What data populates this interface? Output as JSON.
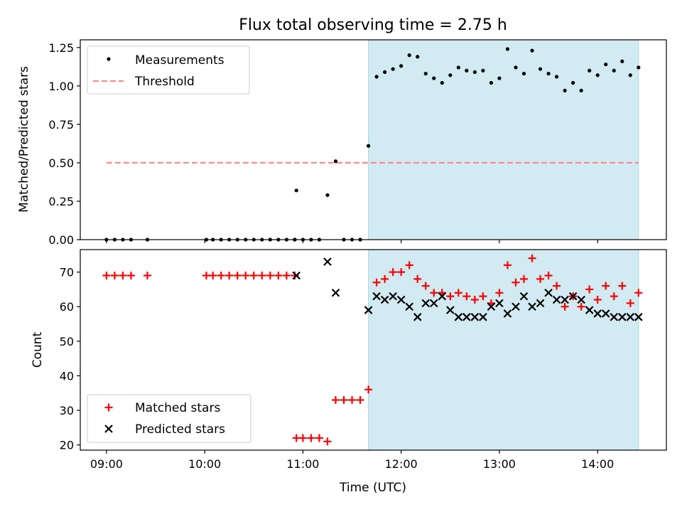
{
  "title": "Flux total observing time = 2.75 h",
  "colors": {
    "shade": "#add8e6",
    "threshold": "#ff8080",
    "measurement": "#000000",
    "matched": "#ff0000",
    "predicted": "#000000"
  },
  "chart_data": [
    {
      "type": "scatter",
      "name": "ratio",
      "ylabel": "Matched/Predicted stars",
      "ylim": [
        0.0,
        1.3
      ],
      "yticks": [
        0.0,
        0.25,
        0.5,
        0.75,
        1.0,
        1.25
      ],
      "ytick_labels": [
        "0.00",
        "0.25",
        "0.50",
        "0.75",
        "1.00",
        "1.25"
      ],
      "xlim": [
        "08:44",
        "14:42"
      ],
      "xticks": [
        "09:00",
        "10:00",
        "11:00",
        "12:00",
        "13:00",
        "14:00"
      ],
      "xtick_labels_shown": false,
      "shaded_region": [
        "11:40",
        "14:25"
      ],
      "grid": false,
      "legend": {
        "position": "top-left",
        "entries": [
          "Measurements",
          "Threshold"
        ]
      },
      "threshold": {
        "label": "Threshold",
        "y": 0.5,
        "x_start": "09:00",
        "x_end": "14:25"
      },
      "series": [
        {
          "name": "Measurements",
          "marker": "dot",
          "points": [
            [
              "09:00",
              0.0
            ],
            [
              "09:05",
              0.0
            ],
            [
              "09:10",
              0.0
            ],
            [
              "09:15",
              0.0
            ],
            [
              "09:25",
              0.0
            ],
            [
              "10:01",
              0.0
            ],
            [
              "10:05",
              0.0
            ],
            [
              "10:10",
              0.0
            ],
            [
              "10:15",
              0.0
            ],
            [
              "10:20",
              0.0
            ],
            [
              "10:25",
              0.0
            ],
            [
              "10:30",
              0.0
            ],
            [
              "10:35",
              0.0
            ],
            [
              "10:40",
              0.0
            ],
            [
              "10:45",
              0.0
            ],
            [
              "10:50",
              0.0
            ],
            [
              "10:55",
              0.0
            ],
            [
              "10:55",
              0.0
            ],
            [
              "10:56",
              0.32
            ],
            [
              "11:00",
              0.0
            ],
            [
              "11:05",
              0.0
            ],
            [
              "11:10",
              0.0
            ],
            [
              "11:15",
              0.29
            ],
            [
              "11:20",
              0.51
            ],
            [
              "11:25",
              0.0
            ],
            [
              "11:30",
              0.0
            ],
            [
              "11:35",
              0.0
            ],
            [
              "11:40",
              0.61
            ],
            [
              "11:45",
              1.06
            ],
            [
              "11:50",
              1.09
            ],
            [
              "11:55",
              1.11
            ],
            [
              "12:00",
              1.13
            ],
            [
              "12:05",
              1.2
            ],
            [
              "12:10",
              1.19
            ],
            [
              "12:15",
              1.08
            ],
            [
              "12:20",
              1.05
            ],
            [
              "12:25",
              1.02
            ],
            [
              "12:30",
              1.07
            ],
            [
              "12:35",
              1.12
            ],
            [
              "12:40",
              1.1
            ],
            [
              "12:45",
              1.09
            ],
            [
              "12:50",
              1.1
            ],
            [
              "12:55",
              1.02
            ],
            [
              "13:00",
              1.05
            ],
            [
              "13:05",
              1.24
            ],
            [
              "13:10",
              1.12
            ],
            [
              "13:15",
              1.08
            ],
            [
              "13:20",
              1.23
            ],
            [
              "13:25",
              1.11
            ],
            [
              "13:30",
              1.08
            ],
            [
              "13:35",
              1.06
            ],
            [
              "13:40",
              0.97
            ],
            [
              "13:45",
              1.02
            ],
            [
              "13:50",
              0.97
            ],
            [
              "13:55",
              1.1
            ],
            [
              "14:00",
              1.07
            ],
            [
              "14:05",
              1.14
            ],
            [
              "14:10",
              1.1
            ],
            [
              "14:15",
              1.16
            ],
            [
              "14:20",
              1.07
            ],
            [
              "14:25",
              1.12
            ]
          ]
        }
      ]
    },
    {
      "type": "scatter",
      "name": "counts",
      "xlabel": "Time (UTC)",
      "ylabel": "Count",
      "ylim": [
        18.5,
        76.5
      ],
      "yticks": [
        20,
        30,
        40,
        50,
        60,
        70
      ],
      "ytick_labels": [
        "20",
        "30",
        "40",
        "50",
        "60",
        "70"
      ],
      "xlim": [
        "08:44",
        "14:42"
      ],
      "xticks": [
        "09:00",
        "10:00",
        "11:00",
        "12:00",
        "13:00",
        "14:00"
      ],
      "xtick_labels": [
        "09:00",
        "10:00",
        "11:00",
        "12:00",
        "13:00",
        "14:00"
      ],
      "shaded_region": [
        "11:40",
        "14:25"
      ],
      "grid": false,
      "legend": {
        "position": "bottom-left",
        "entries": [
          "Matched stars",
          "Predicted stars"
        ]
      },
      "series": [
        {
          "name": "Matched stars",
          "marker": "plus",
          "points": [
            [
              "09:00",
              69
            ],
            [
              "09:05",
              69
            ],
            [
              "09:10",
              69
            ],
            [
              "09:15",
              69
            ],
            [
              "09:25",
              69
            ],
            [
              "10:01",
              69
            ],
            [
              "10:05",
              69
            ],
            [
              "10:10",
              69
            ],
            [
              "10:15",
              69
            ],
            [
              "10:20",
              69
            ],
            [
              "10:25",
              69
            ],
            [
              "10:30",
              69
            ],
            [
              "10:35",
              69
            ],
            [
              "10:40",
              69
            ],
            [
              "10:45",
              69
            ],
            [
              "10:50",
              69
            ],
            [
              "10:55",
              69
            ],
            [
              "10:56",
              22
            ],
            [
              "11:00",
              22
            ],
            [
              "11:05",
              22
            ],
            [
              "11:10",
              22
            ],
            [
              "11:15",
              21
            ],
            [
              "11:20",
              33
            ],
            [
              "11:25",
              33
            ],
            [
              "11:30",
              33
            ],
            [
              "11:35",
              33
            ],
            [
              "11:40",
              36
            ],
            [
              "11:45",
              67
            ],
            [
              "11:50",
              68
            ],
            [
              "11:55",
              70
            ],
            [
              "12:00",
              70
            ],
            [
              "12:05",
              72
            ],
            [
              "12:10",
              68
            ],
            [
              "12:15",
              66
            ],
            [
              "12:20",
              64
            ],
            [
              "12:25",
              64
            ],
            [
              "12:30",
              63
            ],
            [
              "12:35",
              64
            ],
            [
              "12:40",
              63
            ],
            [
              "12:45",
              62
            ],
            [
              "12:50",
              63
            ],
            [
              "12:55",
              61
            ],
            [
              "13:00",
              64
            ],
            [
              "13:05",
              72
            ],
            [
              "13:10",
              67
            ],
            [
              "13:15",
              68
            ],
            [
              "13:20",
              74
            ],
            [
              "13:25",
              68
            ],
            [
              "13:30",
              69
            ],
            [
              "13:35",
              66
            ],
            [
              "13:40",
              60
            ],
            [
              "13:45",
              63
            ],
            [
              "13:50",
              60
            ],
            [
              "13:55",
              65
            ],
            [
              "14:00",
              62
            ],
            [
              "14:05",
              66
            ],
            [
              "14:10",
              63
            ],
            [
              "14:15",
              66
            ],
            [
              "14:20",
              61
            ],
            [
              "14:25",
              64
            ]
          ]
        },
        {
          "name": "Predicted stars",
          "marker": "x",
          "points": [
            [
              "10:56",
              69
            ],
            [
              "11:15",
              73
            ],
            [
              "11:20",
              64
            ],
            [
              "11:40",
              59
            ],
            [
              "11:45",
              63
            ],
            [
              "11:50",
              62
            ],
            [
              "11:55",
              63
            ],
            [
              "12:00",
              62
            ],
            [
              "12:05",
              60
            ],
            [
              "12:10",
              57
            ],
            [
              "12:15",
              61
            ],
            [
              "12:20",
              61
            ],
            [
              "12:25",
              63
            ],
            [
              "12:30",
              59
            ],
            [
              "12:35",
              57
            ],
            [
              "12:40",
              57
            ],
            [
              "12:45",
              57
            ],
            [
              "12:50",
              57
            ],
            [
              "12:55",
              60
            ],
            [
              "13:00",
              61
            ],
            [
              "13:05",
              58
            ],
            [
              "13:10",
              60
            ],
            [
              "13:15",
              63
            ],
            [
              "13:20",
              60
            ],
            [
              "13:25",
              61
            ],
            [
              "13:30",
              64
            ],
            [
              "13:35",
              62
            ],
            [
              "13:40",
              62
            ],
            [
              "13:45",
              63
            ],
            [
              "13:50",
              62
            ],
            [
              "13:55",
              59
            ],
            [
              "14:00",
              58
            ],
            [
              "14:05",
              58
            ],
            [
              "14:10",
              57
            ],
            [
              "14:15",
              57
            ],
            [
              "14:20",
              57
            ],
            [
              "14:25",
              57
            ]
          ]
        }
      ]
    }
  ]
}
